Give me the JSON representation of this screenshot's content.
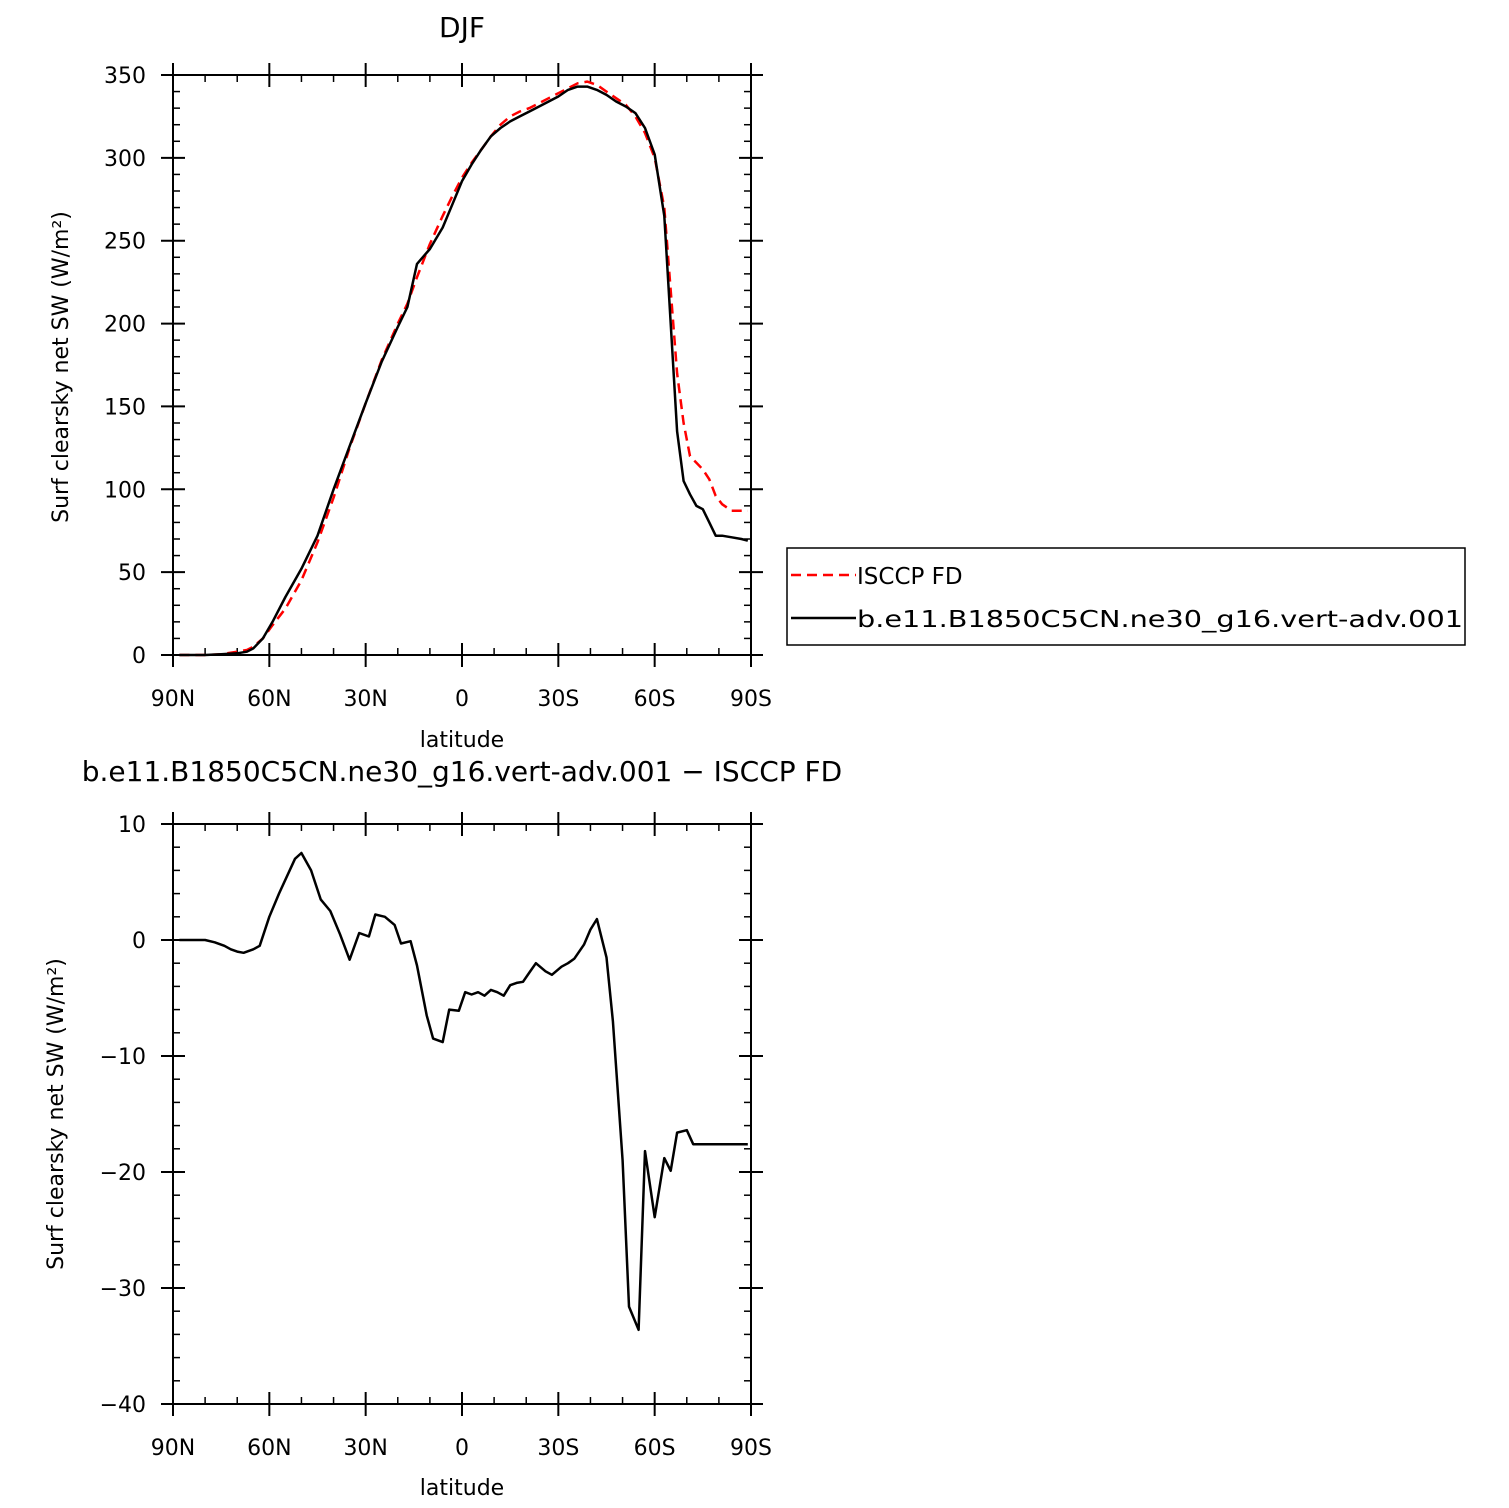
{
  "chart_data": [
    {
      "type": "line",
      "title": "DJF",
      "xlabel": "latitude",
      "ylabel": "Surf clearsky net SW (W/m²)",
      "xlim": [
        -90,
        90
      ],
      "ylim": [
        0,
        350
      ],
      "xticks": [
        -90,
        -60,
        -30,
        0,
        30,
        60,
        90
      ],
      "xtick_labels": [
        "90N",
        "60N",
        "30N",
        "0",
        "30S",
        "60S",
        "90S"
      ],
      "yticks": [
        0,
        50,
        100,
        150,
        200,
        250,
        300,
        350
      ],
      "ytick_labels": [
        "0",
        "50",
        "100",
        "150",
        "200",
        "250",
        "300",
        "350"
      ],
      "grid": false,
      "legend_position": "right",
      "series": [
        {
          "name": "ISCCP FD",
          "color": "#ff0000",
          "dash": "dashed",
          "x": [
            -88,
            -85,
            -80,
            -75,
            -70,
            -67,
            -65,
            -62,
            -59,
            -55,
            -50,
            -45,
            -40,
            -35,
            -30,
            -25,
            -20,
            -17,
            -14,
            -10,
            -6,
            -3,
            0,
            3,
            6,
            9,
            12,
            15,
            18,
            21,
            24,
            27,
            30,
            33,
            36,
            39,
            42,
            45,
            48,
            51,
            54,
            57,
            60,
            63,
            65,
            67,
            69,
            71,
            73,
            75,
            77,
            79,
            81,
            84,
            87,
            89
          ],
          "y": [
            0,
            0,
            0,
            0.5,
            2,
            3,
            5,
            10,
            18,
            28,
            45,
            68,
            95,
            125,
            152,
            178,
            200,
            212,
            228,
            248,
            265,
            277,
            288,
            297,
            305,
            313,
            320,
            325,
            328,
            330,
            333,
            336,
            339,
            342,
            345,
            346,
            344,
            340,
            336,
            332,
            325,
            315,
            300,
            270,
            220,
            170,
            140,
            120,
            116,
            112,
            106,
            96,
            91,
            87,
            87,
            87
          ]
        },
        {
          "name": "b.e11.B1850C5CN.ne30_g16.vert-adv.001",
          "color": "#000000",
          "dash": "solid",
          "x": [
            -88,
            -85,
            -80,
            -75,
            -70,
            -67,
            -65,
            -62,
            -59,
            -55,
            -50,
            -45,
            -40,
            -35,
            -30,
            -25,
            -20,
            -17,
            -14,
            -10,
            -6,
            -3,
            0,
            3,
            6,
            9,
            12,
            15,
            18,
            21,
            24,
            27,
            30,
            33,
            36,
            39,
            42,
            45,
            48,
            51,
            54,
            57,
            60,
            63,
            65,
            67,
            69,
            71,
            73,
            75,
            77,
            79,
            81,
            84,
            87,
            89
          ],
          "y": [
            0,
            0,
            0,
            0.5,
            1,
            2,
            4,
            10,
            20,
            35,
            52,
            72,
            100,
            126,
            152,
            177,
            198,
            210,
            236,
            245,
            258,
            272,
            286,
            296,
            305,
            313,
            318,
            322,
            325,
            328,
            331,
            334,
            337,
            341,
            343,
            343,
            341,
            338,
            334,
            331,
            327,
            318,
            302,
            265,
            200,
            135,
            105,
            97,
            90,
            88,
            80,
            72,
            72,
            71,
            70,
            69
          ]
        }
      ]
    },
    {
      "type": "line",
      "title": "b.e11.B1850C5CN.ne30_g16.vert-adv.001 − ISCCP FD",
      "xlabel": "latitude",
      "ylabel": "Surf clearsky net SW (W/m²)",
      "xlim": [
        -90,
        90
      ],
      "ylim": [
        -40,
        10
      ],
      "xticks": [
        -90,
        -60,
        -30,
        0,
        30,
        60,
        90
      ],
      "xtick_labels": [
        "90N",
        "60N",
        "30N",
        "0",
        "30S",
        "60S",
        "90S"
      ],
      "yticks": [
        -40,
        -30,
        -20,
        -10,
        0,
        10
      ],
      "ytick_labels": [
        "−40",
        "−30",
        "−20",
        "−10",
        "0",
        "10"
      ],
      "grid": false,
      "series": [
        {
          "color": "#000000",
          "dash": "solid",
          "x": [
            -88,
            -85,
            -82,
            -80,
            -77,
            -74,
            -72,
            -70,
            -68,
            -65,
            -63,
            -60,
            -57,
            -52,
            -50,
            -47,
            -44,
            -41,
            -38,
            -35,
            -32,
            -29,
            -27,
            -24,
            -21,
            -19,
            -16,
            -14,
            -11,
            -9,
            -6,
            -4,
            -1,
            1,
            3,
            5,
            7,
            9,
            11,
            13,
            15,
            17,
            19,
            21,
            23,
            26,
            28,
            31,
            33,
            35,
            38,
            40,
            42,
            45,
            47,
            50,
            52,
            55,
            57,
            60,
            63,
            65,
            67,
            70,
            72,
            74,
            76,
            78,
            80,
            82,
            85,
            87,
            89
          ],
          "y": [
            0,
            0,
            0,
            0,
            -0.2,
            -0.5,
            -0.8,
            -1.0,
            -1.1,
            -0.8,
            -0.5,
            2,
            4,
            7,
            7.5,
            6,
            3.5,
            2.5,
            0.5,
            -1.7,
            0.6,
            0.3,
            2.2,
            2.0,
            1.3,
            -0.3,
            -0.1,
            -2.2,
            -6.5,
            -8.5,
            -8.8,
            -6.0,
            -6.1,
            -4.5,
            -4.7,
            -4.5,
            -4.8,
            -4.3,
            -4.5,
            -4.8,
            -3.9,
            -3.7,
            -3.6,
            -2.8,
            -2.0,
            -2.7,
            -3.0,
            -2.3,
            -2.0,
            -1.6,
            -0.4,
            0.9,
            1.8,
            -1.5,
            -7.0,
            -19,
            -31.6,
            -33.6,
            -18.2,
            -23.9,
            -18.8,
            -19.9,
            -16.6,
            -16.4,
            -17.6,
            -17.6,
            -17.6,
            -17.6,
            -17.6,
            -17.6,
            -17.6,
            -17.6,
            -17.6
          ]
        }
      ]
    }
  ]
}
